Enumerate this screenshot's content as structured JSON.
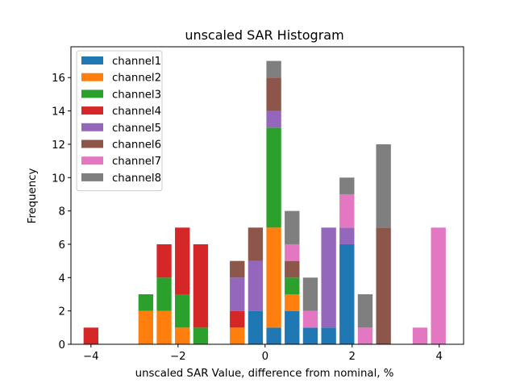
{
  "chart_data": {
    "type": "bar",
    "stacked": true,
    "title": "unscaled SAR Histogram",
    "xlabel": "unscaled SAR Value, difference from nominal, %",
    "ylabel": "Frequency",
    "xlim": [
      -4.46,
      4.56
    ],
    "ylim": [
      0,
      17.85
    ],
    "xticks": [
      -4,
      -2,
      0,
      2,
      4
    ],
    "xtick_labels": [
      "−4",
      "−2",
      "0",
      "2",
      "4"
    ],
    "yticks": [
      0,
      2,
      4,
      6,
      8,
      10,
      12,
      14,
      16
    ],
    "ytick_labels": [
      "0",
      "2",
      "4",
      "6",
      "8",
      "10",
      "12",
      "14",
      "16"
    ],
    "bar_width": 0.34,
    "grid": false,
    "legend_position": "top-left",
    "x": [
      -4.0,
      -2.74,
      -2.32,
      -1.9,
      -1.48,
      -0.64,
      -0.22,
      0.2,
      0.62,
      1.04,
      1.46,
      1.88,
      2.3,
      2.72,
      3.56,
      3.98
    ],
    "series": [
      {
        "name": "channel1",
        "color": "#1f77b4",
        "values": [
          0,
          0,
          0,
          0,
          0,
          0,
          2,
          1,
          2,
          1,
          1,
          6,
          0,
          0,
          0,
          0
        ]
      },
      {
        "name": "channel2",
        "color": "#ff7f0e",
        "values": [
          0,
          2,
          2,
          1,
          0,
          1,
          0,
          6,
          1,
          0,
          0,
          0,
          0,
          0,
          0,
          0
        ]
      },
      {
        "name": "channel3",
        "color": "#2ca02c",
        "values": [
          0,
          1,
          2,
          2,
          1,
          0,
          0,
          6,
          1,
          0,
          0,
          0,
          0,
          0,
          0,
          0
        ]
      },
      {
        "name": "channel4",
        "color": "#d62728",
        "values": [
          1,
          0,
          2,
          4,
          5,
          1,
          0,
          0,
          0,
          0,
          0,
          0,
          0,
          0,
          0,
          0
        ]
      },
      {
        "name": "channel5",
        "color": "#9467bd",
        "values": [
          0,
          0,
          0,
          0,
          0,
          2,
          3,
          1,
          0,
          0,
          6,
          1,
          0,
          0,
          0,
          0
        ]
      },
      {
        "name": "channel6",
        "color": "#8c564b",
        "values": [
          0,
          0,
          0,
          0,
          0,
          1,
          2,
          2,
          1,
          0,
          0,
          0,
          0,
          7,
          0,
          0
        ]
      },
      {
        "name": "channel7",
        "color": "#e377c2",
        "values": [
          0,
          0,
          0,
          0,
          0,
          0,
          0,
          0,
          1,
          1,
          0,
          2,
          1,
          0,
          1,
          7
        ]
      },
      {
        "name": "channel8",
        "color": "#7f7f7f",
        "values": [
          0,
          0,
          0,
          0,
          0,
          0,
          0,
          1,
          2,
          2,
          0,
          1,
          2,
          5,
          0,
          0
        ]
      }
    ]
  }
}
